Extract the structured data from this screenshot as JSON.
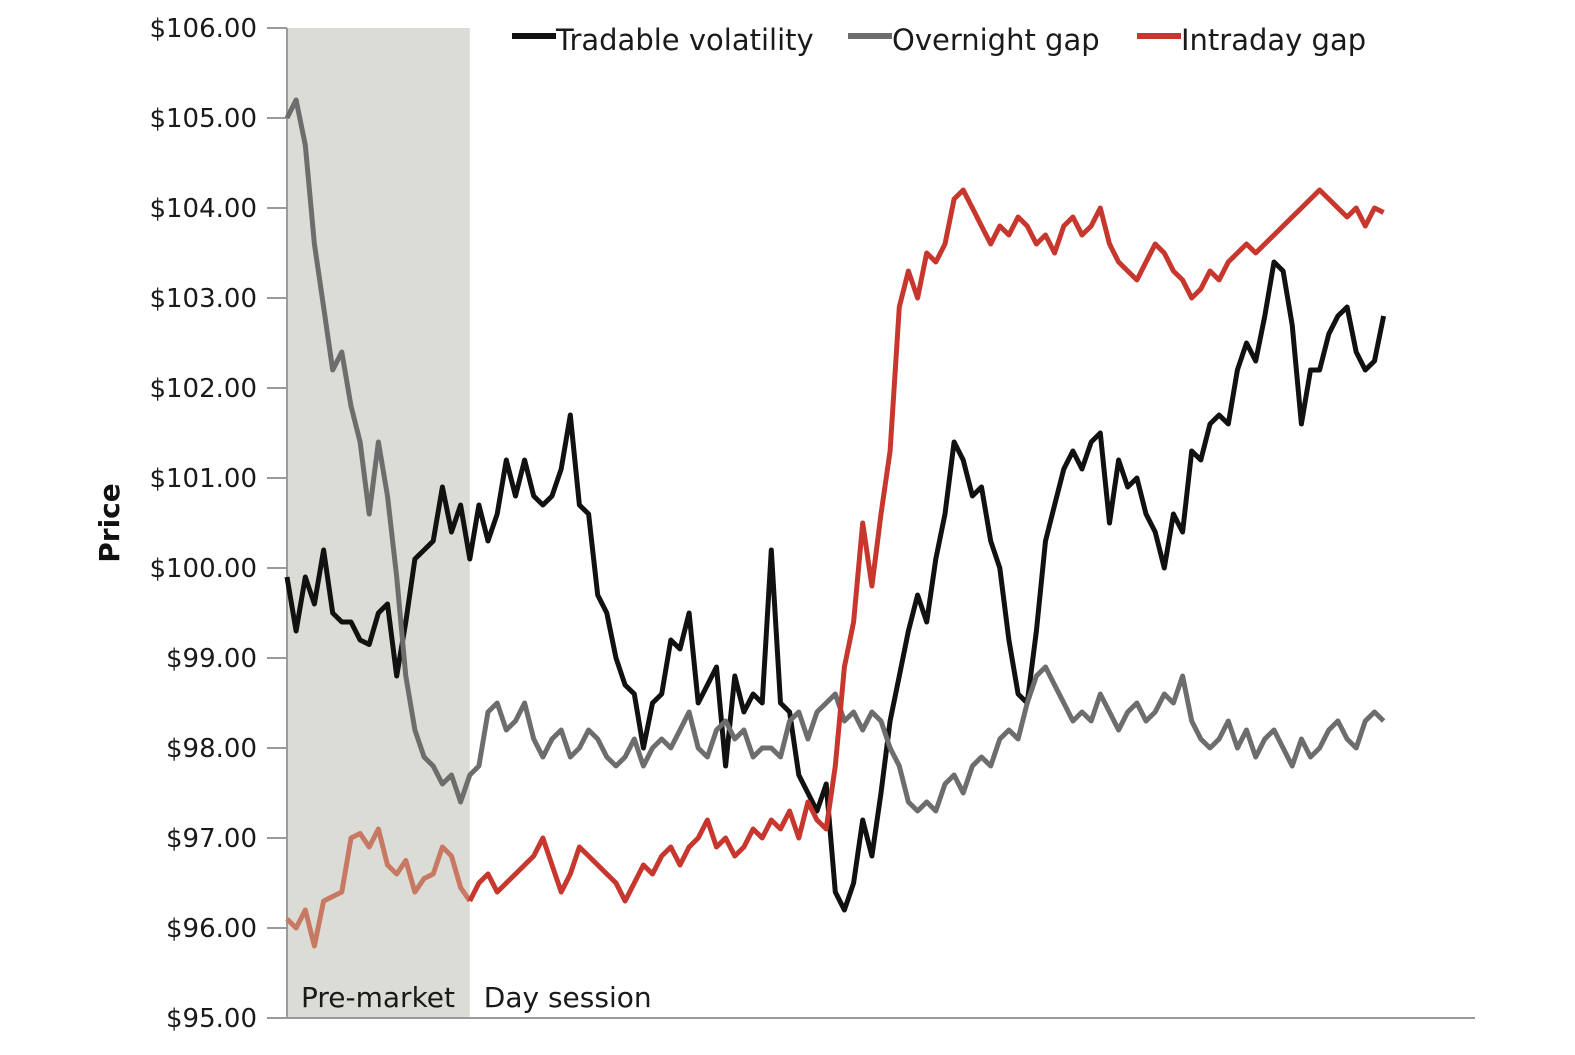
{
  "chart_data": {
    "type": "line",
    "title": "",
    "xlabel": "",
    "ylabel": "Price",
    "ylim": [
      95,
      106
    ],
    "yticks": [
      95,
      96,
      97,
      98,
      99,
      100,
      101,
      102,
      103,
      104,
      105,
      106
    ],
    "ytick_labels": [
      "$95.00",
      "$96.00",
      "$97.00",
      "$98.00",
      "$99.00",
      "$100.00",
      "$101.00",
      "$102.00",
      "$103.00",
      "$104.00",
      "$105.00",
      "$106.00"
    ],
    "x_range": [
      0,
      130
    ],
    "regions": [
      {
        "label": "Pre-market",
        "x_start": 0,
        "x_end": 20,
        "shaded": true,
        "shade_color": "#dcdcd6"
      },
      {
        "label": "Day session",
        "x_start": 20,
        "x_end": 130,
        "shaded": false
      }
    ],
    "legend_position": "top",
    "grid": false,
    "series": [
      {
        "name": "Tradable volatility",
        "color": "#111111",
        "x_start": 0,
        "x_step": 1,
        "values": [
          99.9,
          99.3,
          99.9,
          99.6,
          100.2,
          99.5,
          99.4,
          99.4,
          99.2,
          99.15,
          99.5,
          99.6,
          98.8,
          99.4,
          100.1,
          100.2,
          100.3,
          100.9,
          100.4,
          100.7,
          100.1,
          100.7,
          100.3,
          100.6,
          101.2,
          100.8,
          101.2,
          100.8,
          100.7,
          100.8,
          101.1,
          101.7,
          100.7,
          100.6,
          99.7,
          99.5,
          99.0,
          98.7,
          98.6,
          98.0,
          98.5,
          98.6,
          99.2,
          99.1,
          99.5,
          98.5,
          98.7,
          98.9,
          97.8,
          98.8,
          98.4,
          98.6,
          98.5,
          100.2,
          98.5,
          98.4,
          97.7,
          97.5,
          97.3,
          97.6,
          96.4,
          96.2,
          96.5,
          97.2,
          96.8,
          97.5,
          98.3,
          98.8,
          99.3,
          99.7,
          99.4,
          100.1,
          100.6,
          101.4,
          101.2,
          100.8,
          100.9,
          100.3,
          100.0,
          99.2,
          98.6,
          98.5,
          99.3,
          100.3,
          100.7,
          101.1,
          101.3,
          101.1,
          101.4,
          101.5,
          100.5,
          101.2,
          100.9,
          101.0,
          100.6,
          100.4,
          100.0,
          100.6,
          100.4,
          101.3,
          101.2,
          101.6,
          101.7,
          101.6,
          102.2,
          102.5,
          102.3,
          102.8,
          103.4,
          103.3,
          102.7,
          101.6,
          102.2,
          102.2,
          102.6,
          102.8,
          102.9,
          102.4,
          102.2,
          102.3,
          102.8
        ]
      },
      {
        "name": "Overnight gap",
        "color": "#6d6d6d",
        "x_start": 0,
        "x_step": 1,
        "values": [
          105.0,
          105.2,
          104.7,
          103.6,
          102.9,
          102.2,
          102.4,
          101.8,
          101.4,
          100.6,
          101.4,
          100.8,
          99.9,
          98.8,
          98.2,
          97.9,
          97.8,
          97.6,
          97.7,
          97.4,
          97.7,
          97.8,
          98.4,
          98.5,
          98.2,
          98.3,
          98.5,
          98.1,
          97.9,
          98.1,
          98.2,
          97.9,
          98.0,
          98.2,
          98.1,
          97.9,
          97.8,
          97.9,
          98.1,
          97.8,
          98.0,
          98.1,
          98.0,
          98.2,
          98.4,
          98.0,
          97.9,
          98.2,
          98.3,
          98.1,
          98.2,
          97.9,
          98.0,
          98.0,
          97.9,
          98.3,
          98.4,
          98.1,
          98.4,
          98.5,
          98.6,
          98.3,
          98.4,
          98.2,
          98.4,
          98.3,
          98.0,
          97.8,
          97.4,
          97.3,
          97.4,
          97.3,
          97.6,
          97.7,
          97.5,
          97.8,
          97.9,
          97.8,
          98.1,
          98.2,
          98.1,
          98.5,
          98.8,
          98.9,
          98.7,
          98.5,
          98.3,
          98.4,
          98.3,
          98.6,
          98.4,
          98.2,
          98.4,
          98.5,
          98.3,
          98.4,
          98.6,
          98.5,
          98.8,
          98.3,
          98.1,
          98.0,
          98.1,
          98.3,
          98.0,
          98.2,
          97.9,
          98.1,
          98.2,
          98.0,
          97.8,
          98.1,
          97.9,
          98.0,
          98.2,
          98.3,
          98.1,
          98.0,
          98.3,
          98.4,
          98.3
        ]
      },
      {
        "name": "Intraday gap",
        "color": "#c8372d",
        "color_pre_market": "#c87964",
        "x_start": 0,
        "x_step": 1,
        "values": [
          96.1,
          96.0,
          96.2,
          95.8,
          96.3,
          96.35,
          96.4,
          97.0,
          97.05,
          96.9,
          97.1,
          96.7,
          96.6,
          96.75,
          96.4,
          96.55,
          96.6,
          96.9,
          96.8,
          96.45,
          96.3,
          96.5,
          96.6,
          96.4,
          96.5,
          96.6,
          96.7,
          96.8,
          97.0,
          96.7,
          96.4,
          96.6,
          96.9,
          96.8,
          96.7,
          96.6,
          96.5,
          96.3,
          96.5,
          96.7,
          96.6,
          96.8,
          96.9,
          96.7,
          96.9,
          97.0,
          97.2,
          96.9,
          97.0,
          96.8,
          96.9,
          97.1,
          97.0,
          97.2,
          97.1,
          97.3,
          97.0,
          97.4,
          97.2,
          97.1,
          97.8,
          98.9,
          99.4,
          100.5,
          99.8,
          100.6,
          101.3,
          102.9,
          103.3,
          103.0,
          103.5,
          103.4,
          103.6,
          104.1,
          104.2,
          104.0,
          103.8,
          103.6,
          103.8,
          103.7,
          103.9,
          103.8,
          103.6,
          103.7,
          103.5,
          103.8,
          103.9,
          103.7,
          103.8,
          104.0,
          103.6,
          103.4,
          103.3,
          103.2,
          103.4,
          103.6,
          103.5,
          103.3,
          103.2,
          103.0,
          103.1,
          103.3,
          103.2,
          103.4,
          103.5,
          103.6,
          103.5,
          103.6,
          103.7,
          103.8,
          103.9,
          104.0,
          104.1,
          104.2,
          104.1,
          104.0,
          103.9,
          104.0,
          103.8,
          104.0,
          103.95
        ]
      }
    ]
  }
}
